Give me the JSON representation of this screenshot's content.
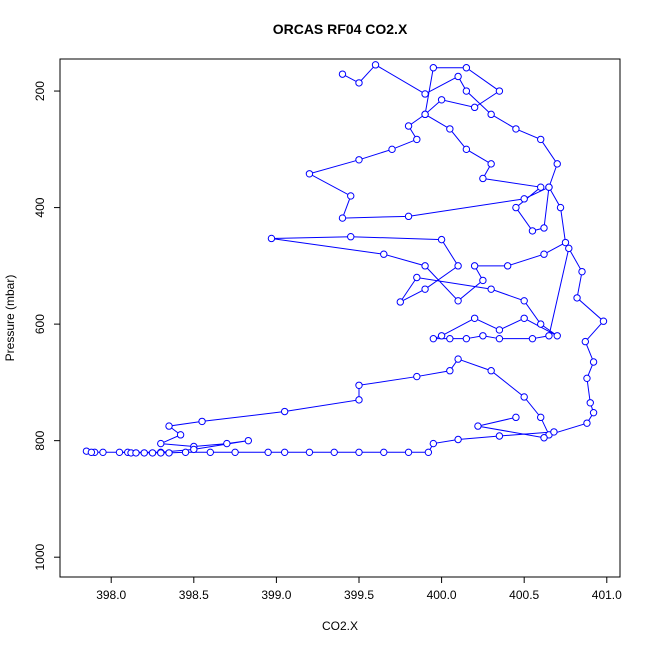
{
  "chart_data": {
    "type": "scatter-line",
    "title": "ORCAS RF04 CO2.X",
    "x_label": "CO2.X",
    "y_label": "Pressure (mbar)",
    "xlim": [
      397.69,
      401.08
    ],
    "ylim": [
      1034,
      145
    ],
    "y_reversed": true,
    "xticks": [
      {
        "value": 398,
        "label": "398.0"
      },
      {
        "value": 398.5,
        "label": "398.5"
      },
      {
        "value": 399,
        "label": "399.0"
      },
      {
        "value": 399.5,
        "label": "399.5"
      },
      {
        "value": 400,
        "label": "400.0"
      },
      {
        "value": 400.5,
        "label": "400.5"
      },
      {
        "value": 401,
        "label": "401.0"
      }
    ],
    "yticks": [
      200,
      400,
      600,
      800,
      1000
    ],
    "series": [
      {
        "color": "#0000ff",
        "x": [
          399.4,
          399.5,
          399.6,
          399.9,
          400.1,
          400.15,
          400.3,
          400.45,
          400.6,
          400.7,
          400.65,
          400.5,
          399.8,
          399.4,
          399.45,
          399.2,
          399.5,
          399.7,
          399.85,
          399.8,
          399.9,
          400.0,
          400.2,
          400.35,
          400.15,
          399.95,
          399.9,
          400.05,
          400.15,
          400.3,
          400.25,
          400.6,
          400.45,
          400.55,
          400.62,
          400.65,
          400.72,
          400.75,
          400.62,
          400.4,
          400.2,
          400.25,
          400.1,
          399.9,
          399.65,
          398.97,
          399.45,
          400.0,
          400.1,
          399.9,
          399.75,
          399.85,
          400.3,
          400.5,
          400.6,
          400.7,
          400.5,
          400.35,
          400.2,
          400.0,
          399.95,
          400.05,
          400.15,
          400.25,
          400.35,
          400.55,
          400.65,
          400.77,
          400.85,
          400.82,
          400.98,
          400.87,
          400.92,
          400.88,
          400.9,
          400.92,
          400.88,
          400.65,
          400.6,
          400.5,
          400.3,
          400.1,
          400.05,
          399.85,
          399.5,
          399.5,
          399.05,
          398.55,
          398.35,
          398.42,
          398.3,
          398.5,
          398.7,
          398.83,
          398.5,
          398.3,
          398.1,
          397.9,
          397.85,
          397.88,
          397.95,
          398.05,
          398.12,
          398.15,
          398.2,
          398.25,
          398.3,
          398.35,
          398.45,
          398.6,
          398.75,
          398.95,
          399.05,
          399.2,
          399.35,
          399.5,
          399.65,
          399.8,
          399.92,
          399.95,
          400.1,
          400.35,
          400.68,
          400.62,
          400.22,
          400.45
        ],
        "values": [
          171,
          186,
          155,
          205,
          175,
          200,
          240,
          265,
          283,
          325,
          365,
          385,
          415,
          418,
          380,
          342,
          318,
          300,
          283,
          260,
          240,
          215,
          228,
          200,
          160,
          160,
          240,
          265,
          300,
          325,
          350,
          365,
          400,
          440,
          435,
          365,
          400,
          460,
          480,
          500,
          500,
          525,
          560,
          500,
          480,
          453,
          450,
          455,
          500,
          540,
          562,
          520,
          540,
          560,
          600,
          620,
          590,
          610,
          590,
          620,
          625,
          625,
          625,
          620,
          625,
          625,
          620,
          470,
          510,
          555,
          595,
          630,
          665,
          693,
          735,
          752,
          770,
          790,
          760,
          725,
          680,
          660,
          680,
          690,
          705,
          730,
          750,
          767,
          775,
          790,
          805,
          810,
          805,
          800,
          815,
          820,
          820,
          820,
          818,
          820,
          820,
          820,
          821,
          821,
          821,
          821,
          821,
          821,
          820,
          820,
          820,
          820,
          820,
          820,
          820,
          820,
          820,
          820,
          820,
          805,
          798,
          792,
          785,
          795,
          775,
          760
        ]
      }
    ]
  }
}
